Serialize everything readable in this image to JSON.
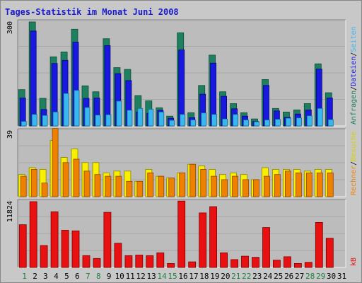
{
  "chart_data": {
    "type": "bar",
    "title": "Tages-Statistik im Monat Juni 2008",
    "days": [
      "1",
      "2",
      "3",
      "4",
      "5",
      "6",
      "7",
      "8",
      "9",
      "10",
      "11",
      "12",
      "13",
      "14",
      "15",
      "16",
      "17",
      "18",
      "19",
      "20",
      "21",
      "22",
      "23",
      "24",
      "25",
      "26",
      "27",
      "28",
      "29",
      "30",
      "31"
    ],
    "weekend_days": [
      "1",
      "7",
      "8",
      "14",
      "15",
      "21",
      "22",
      "28",
      "29"
    ],
    "colors": {
      "weekday_label": "#000000",
      "weekend_label": "#208040",
      "anfragen": "#1f8060",
      "dateien": "#1818e0",
      "seiten": "#38b8f0",
      "besuche": "#f8f000",
      "rechner": "#f08000",
      "kb": "#e81010"
    },
    "panels": [
      {
        "name": "anfragen-dateien-seiten",
        "ymax_label": "300",
        "ymax": 300,
        "right_labels": [
          "Anfragen",
          "/",
          "Dateien",
          "/",
          "Seiten"
        ],
        "series": [
          {
            "name": "Anfragen",
            "color_key": "anfragen",
            "values": [
              104,
              298,
              79,
              198,
              212,
              277,
              115,
              98,
              250,
              167,
              162,
              87,
              72,
              52,
              28,
              267,
              38,
              116,
              203,
              98,
              64,
              38,
              20,
              133,
              50,
              40,
              46,
              64,
              178,
              95,
              0
            ]
          },
          {
            "name": "Dateien",
            "color_key": "dateien",
            "values": [
              80,
              272,
              47,
              179,
              188,
              240,
              79,
              80,
              230,
              150,
              130,
              40,
              36,
              45,
              22,
              218,
              24,
              91,
              180,
              85,
              49,
              28,
              13,
              116,
              43,
              25,
              34,
              46,
              163,
              80,
              0
            ]
          },
          {
            "name": "Seiten",
            "color_key": "seiten",
            "values": [
              13,
              33,
              30,
              40,
              93,
              102,
              53,
              31,
              32,
              71,
              45,
              50,
              48,
              40,
              16,
              33,
              17,
              37,
              33,
              20,
              33,
              17,
              12,
              17,
              19,
              22,
              23,
              29,
              50,
              18,
              0
            ]
          }
        ]
      },
      {
        "name": "rechner-besuche",
        "ymax_label": "39",
        "ymax": 39,
        "right_labels": [
          "Rechner",
          "/",
          "Besuche"
        ],
        "series": [
          {
            "name": "Besuche",
            "color_key": "besuche",
            "values": [
              13,
              17,
              16,
              33,
              23,
              28,
              20,
              20,
              14,
              15,
              15,
              9,
              16,
              12,
              11,
              14,
              19,
              18,
              16,
              13,
              14,
              13,
              10,
              17,
              16,
              16,
              16,
              15,
              16,
              16,
              0
            ]
          },
          {
            "name": "Rechner",
            "color_key": "rechner",
            "values": [
              12,
              16,
              8,
              40,
              20,
              22,
              15,
              13,
              12,
              12,
              9,
              9,
              14,
              12,
              11,
              14,
              19,
              16,
              12,
              10,
              12,
              10,
              10,
              12,
              13,
              15,
              14,
              14,
              14,
              14,
              0
            ]
          }
        ]
      },
      {
        "name": "kb",
        "ymax_label": "11824",
        "ymax": 11824,
        "right_labels": [
          "kB"
        ],
        "series": [
          {
            "name": "kB",
            "color_key": "kb",
            "values": [
              7600,
              11700,
              3900,
              9900,
              6600,
              6500,
              2100,
              1600,
              9800,
              4300,
              2100,
              2200,
              2100,
              2600,
              700,
              11800,
              1000,
              9700,
              10800,
              2600,
              1400,
              2000,
              1800,
              7100,
              1300,
              1900,
              700,
              900,
              8000,
              5200,
              0
            ]
          }
        ]
      }
    ]
  }
}
